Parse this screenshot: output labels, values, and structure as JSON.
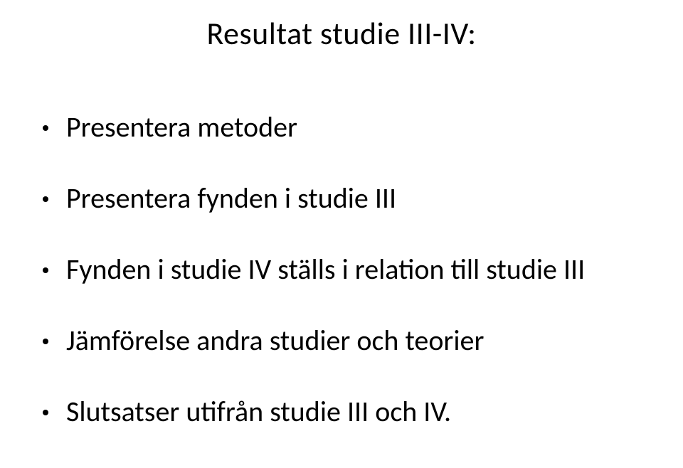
{
  "title": "Resultat studie III-IV:",
  "bullets": [
    "Presentera metoder",
    "Presentera fynden i studie III",
    "Fynden i studie IV ställs i relation till studie III",
    "Jämförelse andra studier och teorier",
    "Slutsatser utifrån studie III och IV."
  ],
  "styling": {
    "background_color": "#ffffff",
    "text_color": "#000000",
    "title_fontsize": 44,
    "bullet_fontsize": 40,
    "bullet_marker_color": "#000000",
    "font_family": "Calibri"
  }
}
